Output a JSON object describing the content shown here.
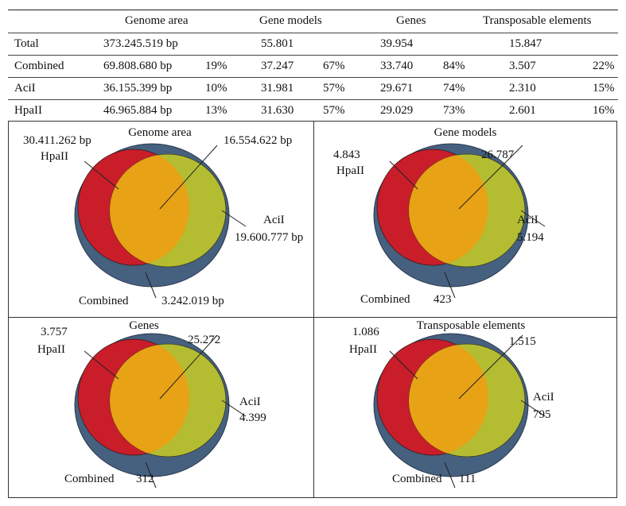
{
  "table": {
    "headers": [
      "Genome area",
      "Gene  models",
      "Genes",
      "Transposable elements"
    ],
    "rows": [
      {
        "label": "Total",
        "genome_area": "373.245.519 bp",
        "genome_pct": "",
        "gene_models": "55.801",
        "gene_models_pct": "",
        "genes": "39.954",
        "genes_pct": "",
        "te": "15.847",
        "te_pct": ""
      },
      {
        "label": "Combined",
        "genome_area": "69.808.680 bp",
        "genome_pct": "19%",
        "gene_models": "37.247",
        "gene_models_pct": "67%",
        "genes": "33.740",
        "genes_pct": "84%",
        "te": "3.507",
        "te_pct": "22%"
      },
      {
        "label": "AciI",
        "genome_area": "36.155.399 bp",
        "genome_pct": "10%",
        "gene_models": "31.981",
        "gene_models_pct": "57%",
        "genes": "29.671",
        "genes_pct": "74%",
        "te": "2.310",
        "te_pct": "15%"
      },
      {
        "label": "HpaII",
        "genome_area": "46.965.884 bp",
        "genome_pct": "13%",
        "gene_models": "31.630",
        "gene_models_pct": "57%",
        "genes": "29.029",
        "genes_pct": "73%",
        "te": "2.601",
        "te_pct": "16%"
      }
    ]
  },
  "colors": {
    "combined": "#46607f",
    "hpaii": "#c91d2a",
    "acii": "#b4bd32",
    "overlap": "#e8a215"
  },
  "venns": [
    {
      "title": "Genome area",
      "hpaii_label": "HpaII",
      "hpaii_only": "30.411.262 bp",
      "overlap": "16.554.622 bp",
      "acii_label": "AciI",
      "acii_only": "19.600.777 bp",
      "combined_label": "Combined",
      "combined_only": "3.242.019 bp"
    },
    {
      "title": "Gene models",
      "hpaii_label": "HpaII",
      "hpaii_only": "4.843",
      "overlap": "26.787",
      "acii_label": "AciI",
      "acii_only": "5.194",
      "combined_label": "Combined",
      "combined_only": "423"
    },
    {
      "title": "Genes",
      "hpaii_label": "HpaII",
      "hpaii_only": "3.757",
      "overlap": "25.272",
      "acii_label": "AciI",
      "acii_only": "4.399",
      "combined_label": "Combined",
      "combined_only": "312"
    },
    {
      "title": "Transposable elements",
      "hpaii_label": "HpaII",
      "hpaii_only": "1.086",
      "overlap": "1.515",
      "acii_label": "AciI",
      "acii_only": "795",
      "combined_label": "Combined",
      "combined_only": "111"
    }
  ]
}
